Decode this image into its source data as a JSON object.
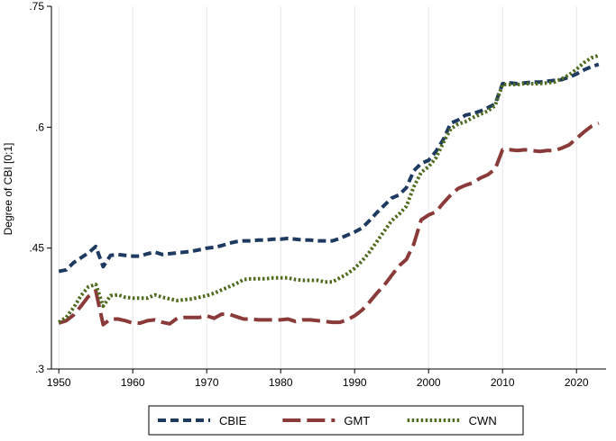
{
  "chart_data": {
    "type": "line",
    "ylabel": "Degree of CBI [0;1]",
    "xlabel": "",
    "xlim": [
      1949,
      2024
    ],
    "ylim": [
      0.3,
      0.75
    ],
    "x_ticks": [
      1950,
      1960,
      1970,
      1980,
      1990,
      2000,
      2010,
      2020
    ],
    "x_tick_labels": [
      "1950",
      "1960",
      "1970",
      "1980",
      "1990",
      "2000",
      "2010",
      "2020"
    ],
    "y_ticks": [
      0.3,
      0.45,
      0.6,
      0.75
    ],
    "y_tick_labels": [
      ".3",
      ".45",
      ".6",
      ".75"
    ],
    "grid": "vertical",
    "legend_position": "bottom",
    "series": [
      {
        "name": "CBIE",
        "color": "#1f3a60",
        "dash": "short-dash",
        "points": [
          [
            1950,
            0.421
          ],
          [
            1951,
            0.423
          ],
          [
            1952,
            0.432
          ],
          [
            1953,
            0.438
          ],
          [
            1954,
            0.444
          ],
          [
            1955,
            0.452
          ],
          [
            1956,
            0.427
          ],
          [
            1957,
            0.441
          ],
          [
            1958,
            0.442
          ],
          [
            1959,
            0.441
          ],
          [
            1960,
            0.44
          ],
          [
            1961,
            0.44
          ],
          [
            1962,
            0.443
          ],
          [
            1963,
            0.445
          ],
          [
            1964,
            0.442
          ],
          [
            1965,
            0.443
          ],
          [
            1966,
            0.444
          ],
          [
            1967,
            0.445
          ],
          [
            1968,
            0.446
          ],
          [
            1969,
            0.448
          ],
          [
            1970,
            0.45
          ],
          [
            1971,
            0.451
          ],
          [
            1972,
            0.453
          ],
          [
            1973,
            0.456
          ],
          [
            1974,
            0.458
          ],
          [
            1975,
            0.459
          ],
          [
            1976,
            0.459
          ],
          [
            1977,
            0.46
          ],
          [
            1978,
            0.46
          ],
          [
            1979,
            0.461
          ],
          [
            1980,
            0.461
          ],
          [
            1981,
            0.462
          ],
          [
            1982,
            0.461
          ],
          [
            1983,
            0.46
          ],
          [
            1984,
            0.46
          ],
          [
            1985,
            0.459
          ],
          [
            1986,
            0.459
          ],
          [
            1987,
            0.459
          ],
          [
            1988,
            0.462
          ],
          [
            1989,
            0.466
          ],
          [
            1990,
            0.47
          ],
          [
            1991,
            0.475
          ],
          [
            1992,
            0.484
          ],
          [
            1993,
            0.494
          ],
          [
            1994,
            0.503
          ],
          [
            1995,
            0.512
          ],
          [
            1996,
            0.516
          ],
          [
            1997,
            0.525
          ],
          [
            1998,
            0.546
          ],
          [
            1999,
            0.555
          ],
          [
            2000,
            0.559
          ],
          [
            2001,
            0.57
          ],
          [
            2002,
            0.585
          ],
          [
            2003,
            0.605
          ],
          [
            2004,
            0.609
          ],
          [
            2005,
            0.615
          ],
          [
            2006,
            0.617
          ],
          [
            2007,
            0.62
          ],
          [
            2008,
            0.624
          ],
          [
            2009,
            0.629
          ],
          [
            2010,
            0.654
          ],
          [
            2011,
            0.655
          ],
          [
            2012,
            0.654
          ],
          [
            2013,
            0.655
          ],
          [
            2014,
            0.656
          ],
          [
            2015,
            0.656
          ],
          [
            2016,
            0.657
          ],
          [
            2017,
            0.658
          ],
          [
            2018,
            0.659
          ],
          [
            2019,
            0.662
          ],
          [
            2020,
            0.666
          ],
          [
            2021,
            0.671
          ],
          [
            2022,
            0.675
          ],
          [
            2023,
            0.678
          ]
        ]
      },
      {
        "name": "GMT",
        "color": "#8b3a3a",
        "dash": "long-dash",
        "points": [
          [
            1950,
            0.357
          ],
          [
            1951,
            0.36
          ],
          [
            1952,
            0.367
          ],
          [
            1953,
            0.378
          ],
          [
            1954,
            0.39
          ],
          [
            1955,
            0.397
          ],
          [
            1956,
            0.355
          ],
          [
            1957,
            0.362
          ],
          [
            1958,
            0.362
          ],
          [
            1959,
            0.36
          ],
          [
            1960,
            0.357
          ],
          [
            1961,
            0.357
          ],
          [
            1962,
            0.36
          ],
          [
            1963,
            0.361
          ],
          [
            1964,
            0.358
          ],
          [
            1965,
            0.356
          ],
          [
            1966,
            0.363
          ],
          [
            1967,
            0.364
          ],
          [
            1968,
            0.364
          ],
          [
            1969,
            0.364
          ],
          [
            1970,
            0.366
          ],
          [
            1971,
            0.363
          ],
          [
            1972,
            0.368
          ],
          [
            1973,
            0.368
          ],
          [
            1974,
            0.365
          ],
          [
            1975,
            0.362
          ],
          [
            1976,
            0.362
          ],
          [
            1977,
            0.361
          ],
          [
            1978,
            0.361
          ],
          [
            1979,
            0.361
          ],
          [
            1980,
            0.361
          ],
          [
            1981,
            0.362
          ],
          [
            1982,
            0.359
          ],
          [
            1983,
            0.361
          ],
          [
            1984,
            0.361
          ],
          [
            1985,
            0.36
          ],
          [
            1986,
            0.359
          ],
          [
            1987,
            0.358
          ],
          [
            1988,
            0.358
          ],
          [
            1989,
            0.361
          ],
          [
            1990,
            0.366
          ],
          [
            1991,
            0.373
          ],
          [
            1992,
            0.383
          ],
          [
            1993,
            0.394
          ],
          [
            1994,
            0.404
          ],
          [
            1995,
            0.416
          ],
          [
            1996,
            0.428
          ],
          [
            1997,
            0.436
          ],
          [
            1998,
            0.455
          ],
          [
            1999,
            0.485
          ],
          [
            2000,
            0.491
          ],
          [
            2001,
            0.495
          ],
          [
            2002,
            0.506
          ],
          [
            2003,
            0.516
          ],
          [
            2004,
            0.524
          ],
          [
            2005,
            0.528
          ],
          [
            2006,
            0.531
          ],
          [
            2007,
            0.537
          ],
          [
            2008,
            0.541
          ],
          [
            2009,
            0.548
          ],
          [
            2010,
            0.572
          ],
          [
            2011,
            0.572
          ],
          [
            2012,
            0.571
          ],
          [
            2013,
            0.572
          ],
          [
            2014,
            0.571
          ],
          [
            2015,
            0.57
          ],
          [
            2016,
            0.571
          ],
          [
            2017,
            0.571
          ],
          [
            2018,
            0.574
          ],
          [
            2019,
            0.578
          ],
          [
            2020,
            0.586
          ],
          [
            2021,
            0.594
          ],
          [
            2022,
            0.601
          ],
          [
            2023,
            0.605
          ]
        ]
      },
      {
        "name": "CWN",
        "color": "#4f6b1e",
        "dash": "dot",
        "points": [
          [
            1950,
            0.358
          ],
          [
            1951,
            0.364
          ],
          [
            1952,
            0.376
          ],
          [
            1953,
            0.391
          ],
          [
            1954,
            0.402
          ],
          [
            1955,
            0.405
          ],
          [
            1956,
            0.378
          ],
          [
            1957,
            0.391
          ],
          [
            1958,
            0.392
          ],
          [
            1959,
            0.389
          ],
          [
            1960,
            0.388
          ],
          [
            1961,
            0.388
          ],
          [
            1962,
            0.388
          ],
          [
            1963,
            0.392
          ],
          [
            1964,
            0.389
          ],
          [
            1965,
            0.387
          ],
          [
            1966,
            0.385
          ],
          [
            1967,
            0.386
          ],
          [
            1968,
            0.387
          ],
          [
            1969,
            0.389
          ],
          [
            1970,
            0.391
          ],
          [
            1971,
            0.394
          ],
          [
            1972,
            0.398
          ],
          [
            1973,
            0.402
          ],
          [
            1974,
            0.406
          ],
          [
            1975,
            0.411
          ],
          [
            1976,
            0.412
          ],
          [
            1977,
            0.412
          ],
          [
            1978,
            0.412
          ],
          [
            1979,
            0.413
          ],
          [
            1980,
            0.413
          ],
          [
            1981,
            0.413
          ],
          [
            1982,
            0.411
          ],
          [
            1983,
            0.41
          ],
          [
            1984,
            0.41
          ],
          [
            1985,
            0.41
          ],
          [
            1986,
            0.408
          ],
          [
            1987,
            0.408
          ],
          [
            1988,
            0.413
          ],
          [
            1989,
            0.418
          ],
          [
            1990,
            0.425
          ],
          [
            1991,
            0.434
          ],
          [
            1992,
            0.445
          ],
          [
            1993,
            0.458
          ],
          [
            1994,
            0.471
          ],
          [
            1995,
            0.484
          ],
          [
            1996,
            0.492
          ],
          [
            1997,
            0.502
          ],
          [
            1998,
            0.526
          ],
          [
            1999,
            0.544
          ],
          [
            2000,
            0.551
          ],
          [
            2001,
            0.562
          ],
          [
            2002,
            0.581
          ],
          [
            2003,
            0.598
          ],
          [
            2004,
            0.604
          ],
          [
            2005,
            0.607
          ],
          [
            2006,
            0.612
          ],
          [
            2007,
            0.616
          ],
          [
            2008,
            0.62
          ],
          [
            2009,
            0.627
          ],
          [
            2010,
            0.653
          ],
          [
            2011,
            0.653
          ],
          [
            2012,
            0.653
          ],
          [
            2013,
            0.654
          ],
          [
            2014,
            0.654
          ],
          [
            2015,
            0.654
          ],
          [
            2016,
            0.655
          ],
          [
            2017,
            0.656
          ],
          [
            2018,
            0.66
          ],
          [
            2019,
            0.665
          ],
          [
            2020,
            0.672
          ],
          [
            2021,
            0.68
          ],
          [
            2022,
            0.686
          ],
          [
            2023,
            0.689
          ]
        ]
      }
    ]
  }
}
